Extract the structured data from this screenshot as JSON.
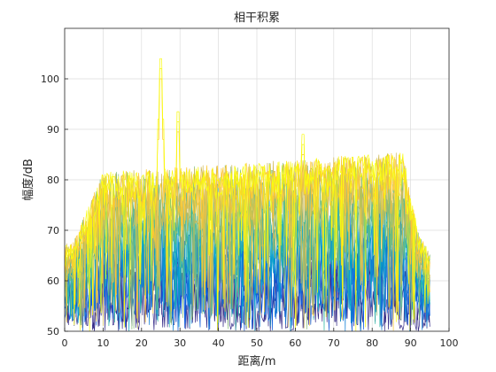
{
  "chart_data": {
    "type": "line",
    "title": "相干积累",
    "xlabel": "距离/m",
    "ylabel": "幅度/dB",
    "xlim": [
      0,
      100
    ],
    "ylim": [
      50,
      110
    ],
    "xticks": [
      "0",
      "10",
      "20",
      "30",
      "40",
      "50",
      "60",
      "70",
      "80",
      "90",
      "100"
    ],
    "yticks": [
      "50",
      "60",
      "70",
      "80",
      "90",
      "100"
    ],
    "grid": true,
    "colormap": [
      "#352a87",
      "#0f5cdd",
      "#1481d6",
      "#06a4ca",
      "#2eb7a4",
      "#87bf77",
      "#d1bb59",
      "#fec832",
      "#f9fb0e"
    ],
    "series_count": 18,
    "description_values": {
      "x_range_of_data": [
        0,
        95
      ],
      "noise_floor": 50,
      "plateau_max": 85,
      "plateau_range_x": [
        10,
        88
      ],
      "peaks": [
        {
          "x": 25,
          "y": 104
        },
        {
          "x": 29.5,
          "y": 93.5
        },
        {
          "x": 62,
          "y": 89
        }
      ]
    }
  }
}
